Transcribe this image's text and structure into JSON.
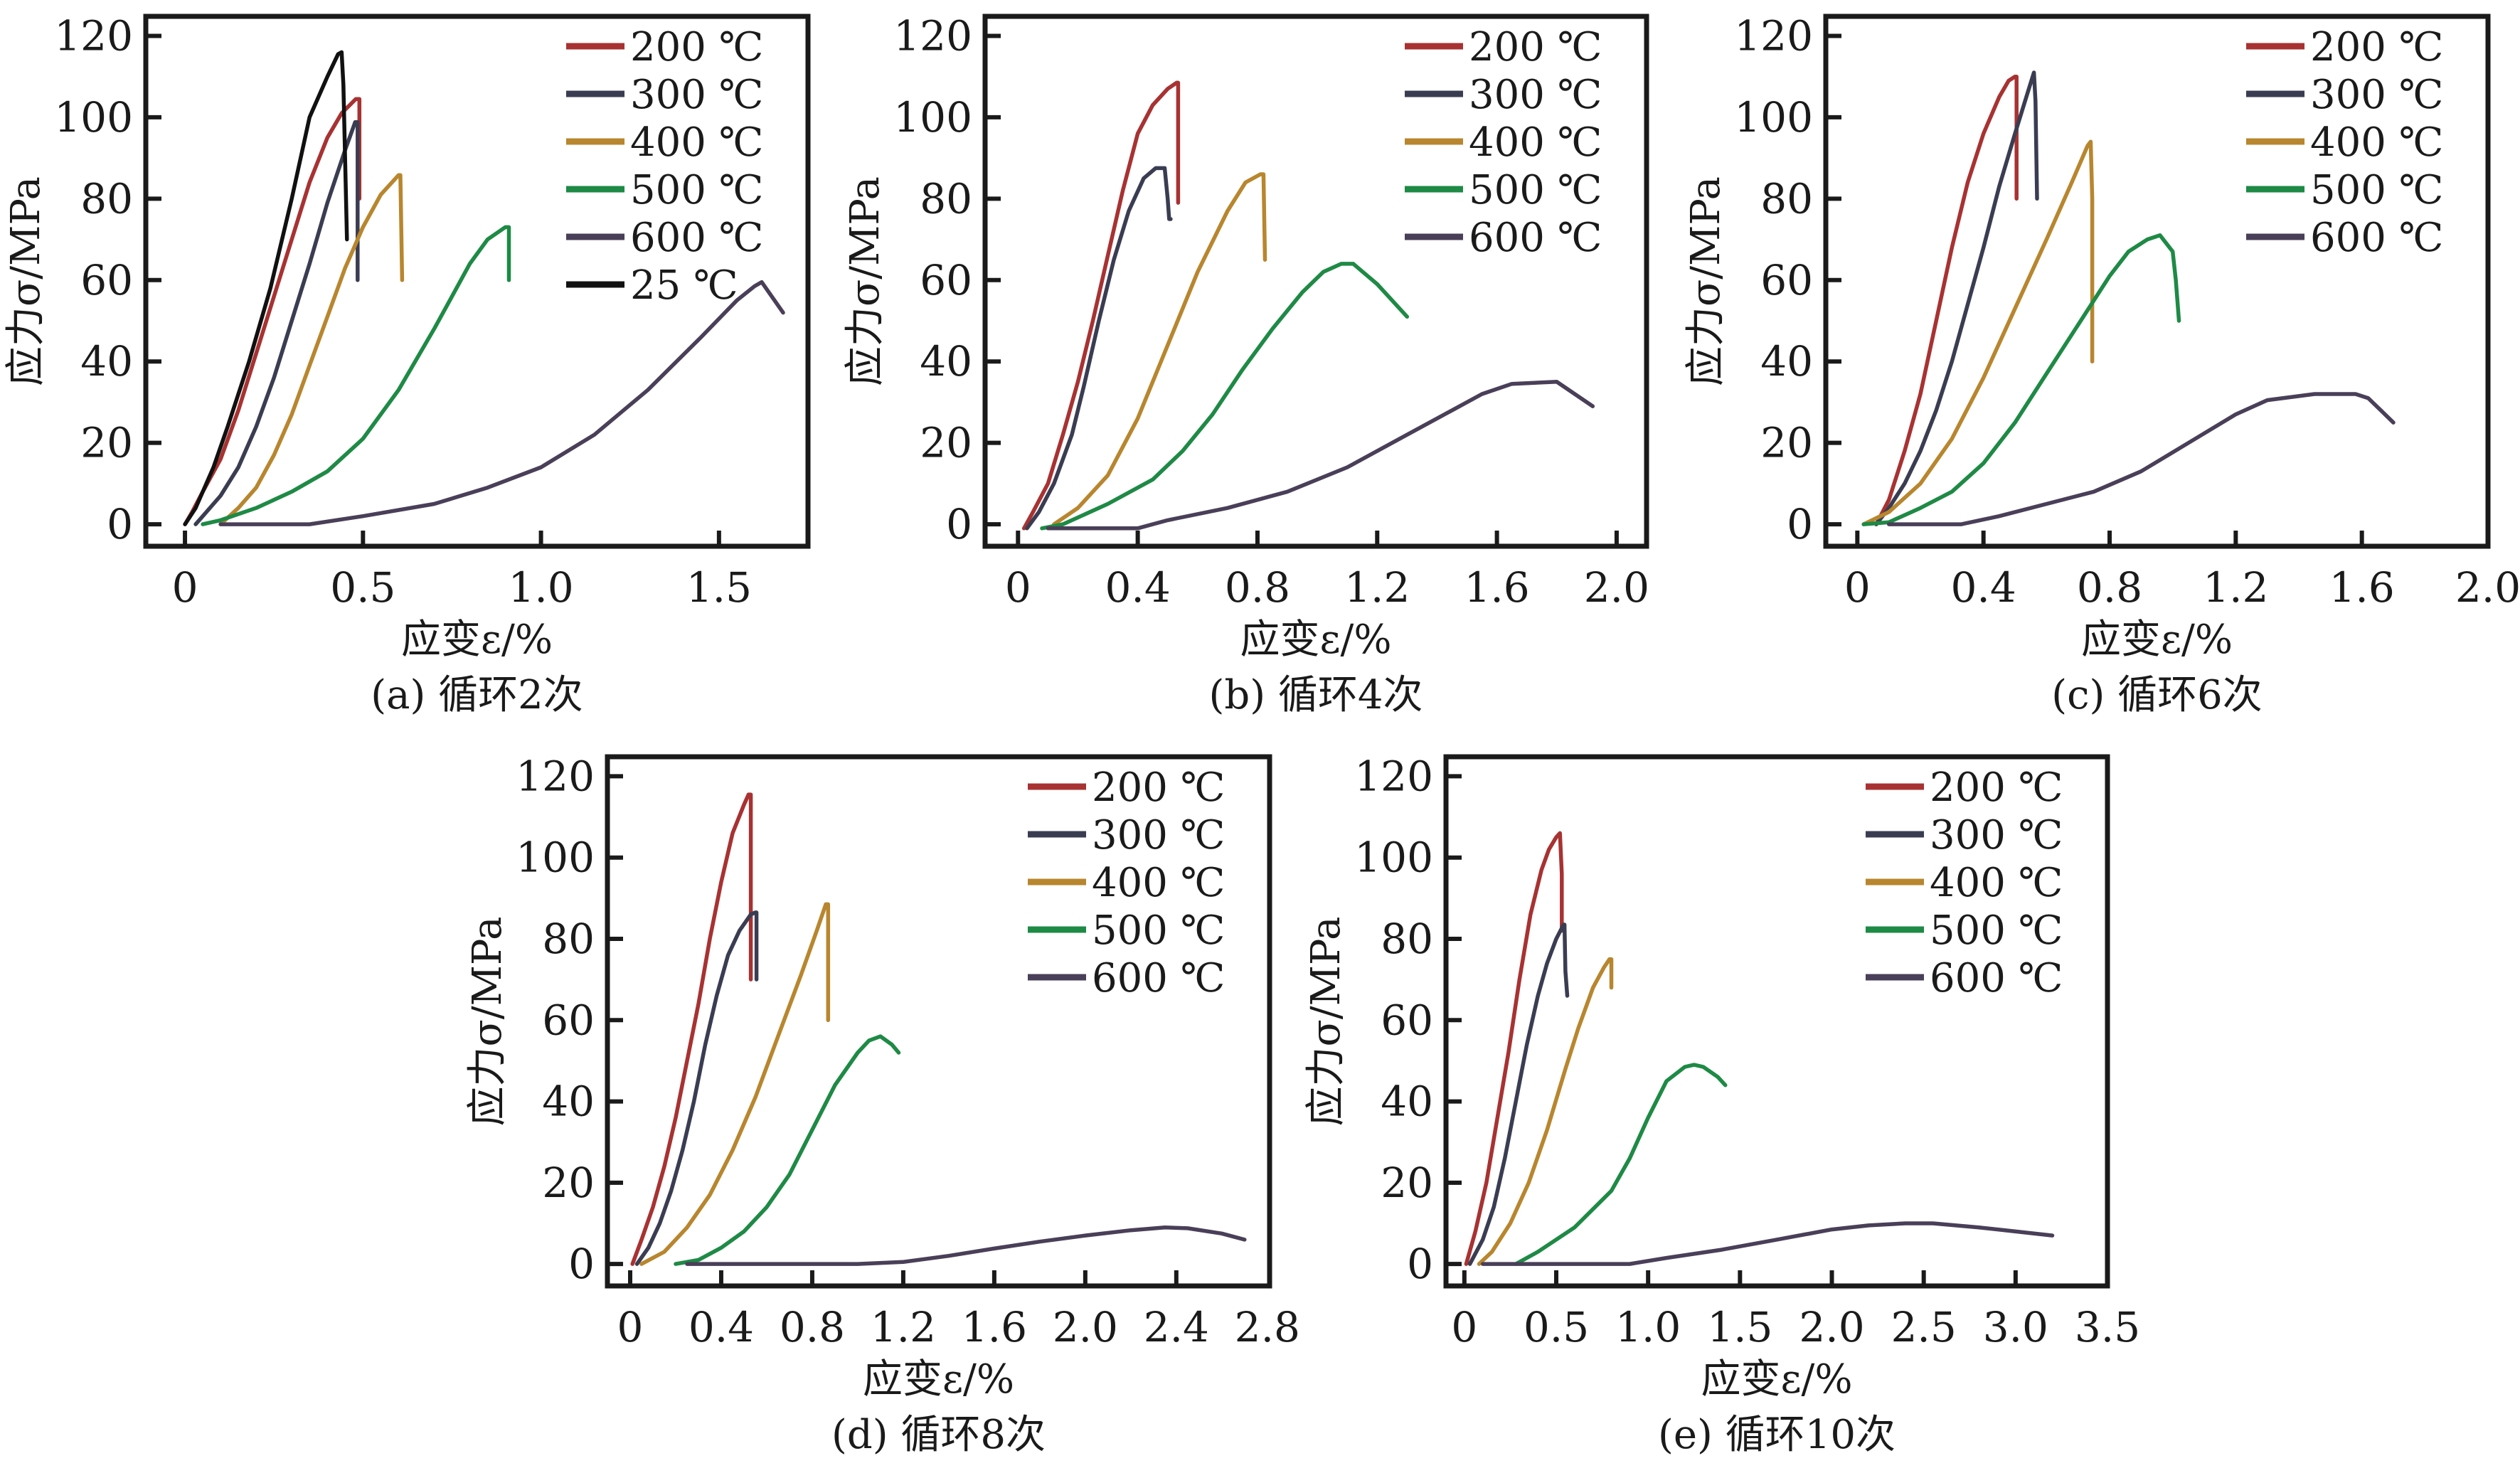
{
  "figure": {
    "series_colors": {
      "200 ℃": "#a83232",
      "300 ℃": "#3a3d52",
      "400 ℃": "#b8862e",
      "500 ℃": "#1e8a45",
      "600 ℃": "#4a3f58",
      "25 ℃": "#111111"
    }
  },
  "chart_data": [
    {
      "type": "line",
      "caption": "(a) 循环2次",
      "xlabel": "应变ε/%",
      "ylabel": "应力σ/MPa",
      "xlim": [
        -0.11,
        1.75
      ],
      "ylim": [
        -5.4,
        124.8
      ],
      "xticks": [
        0,
        0.5,
        1.0,
        1.5
      ],
      "xtick_labels": [
        "0",
        "0.5",
        "1.0",
        "1.5"
      ],
      "yticks": [
        0,
        20,
        40,
        60,
        80,
        100,
        120
      ],
      "ytick_labels": [
        "0",
        "20",
        "40",
        "60",
        "80",
        "100",
        "120"
      ],
      "legend": [
        "200 ℃",
        "300 ℃",
        "400 ℃",
        "500 ℃",
        "600 ℃",
        "25 ℃"
      ],
      "legend_position": "top-right",
      "grid": false,
      "series": [
        {
          "name": "200 ℃",
          "x": [
            0.0,
            0.02,
            0.05,
            0.1,
            0.15,
            0.2,
            0.25,
            0.3,
            0.35,
            0.4,
            0.44,
            0.48,
            0.49,
            0.49
          ],
          "y": [
            0,
            3,
            8,
            16,
            28,
            42,
            56,
            70,
            84,
            95,
            101,
            104.5,
            104.5,
            80
          ]
        },
        {
          "name": "300 ℃",
          "x": [
            0.03,
            0.05,
            0.1,
            0.15,
            0.2,
            0.25,
            0.3,
            0.35,
            0.4,
            0.45,
            0.478,
            0.485,
            0.485
          ],
          "y": [
            0,
            2,
            7,
            14,
            24,
            36,
            50,
            64,
            79,
            92,
            98.8,
            98.8,
            60
          ]
        },
        {
          "name": "400 ℃",
          "x": [
            0.1,
            0.15,
            0.2,
            0.25,
            0.3,
            0.35,
            0.4,
            0.45,
            0.5,
            0.55,
            0.6,
            0.605,
            0.61
          ],
          "y": [
            0,
            4,
            9,
            17,
            27,
            39,
            51,
            63,
            73,
            81,
            85.8,
            85.8,
            60
          ]
        },
        {
          "name": "500 ℃",
          "x": [
            0.05,
            0.1,
            0.2,
            0.3,
            0.4,
            0.5,
            0.6,
            0.7,
            0.75,
            0.8,
            0.85,
            0.9,
            0.91,
            0.91
          ],
          "y": [
            0,
            1,
            4,
            8,
            13,
            21,
            33,
            48,
            56,
            64,
            70,
            73,
            73,
            60
          ]
        },
        {
          "name": "600 ℃",
          "x": [
            0.1,
            0.35,
            0.5,
            0.7,
            0.85,
            1.0,
            1.15,
            1.3,
            1.45,
            1.55,
            1.6,
            1.62,
            1.68
          ],
          "y": [
            0,
            0,
            2,
            5,
            9,
            14,
            22,
            33,
            46,
            55,
            58.5,
            59.5,
            52
          ]
        },
        {
          "name": "25 ℃",
          "x": [
            0.0,
            0.03,
            0.08,
            0.12,
            0.18,
            0.24,
            0.3,
            0.35,
            0.4,
            0.43,
            0.44,
            0.445,
            0.455
          ],
          "y": [
            0,
            4,
            14,
            24,
            40,
            58,
            80,
            100,
            110,
            115.5,
            116,
            108,
            70
          ]
        }
      ]
    },
    {
      "type": "line",
      "caption": "(b) 循环4次",
      "xlabel": "应变ε/%",
      "ylabel": "应力σ/MPa",
      "xlim": [
        -0.11,
        2.1
      ],
      "ylim": [
        -5.4,
        124.8
      ],
      "xticks": [
        0,
        0.4,
        0.8,
        1.2,
        1.6,
        2.0
      ],
      "xtick_labels": [
        "0",
        "0.4",
        "0.8",
        "1.2",
        "1.6",
        "2.0"
      ],
      "yticks": [
        0,
        20,
        40,
        60,
        80,
        100,
        120
      ],
      "ytick_labels": [
        "0",
        "20",
        "40",
        "60",
        "80",
        "100",
        "120"
      ],
      "legend": [
        "200 ℃",
        "300 ℃",
        "400 ℃",
        "500 ℃",
        "600 ℃"
      ],
      "legend_position": "top-right",
      "grid": false,
      "series": [
        {
          "name": "200 ℃",
          "x": [
            0.02,
            0.05,
            0.1,
            0.15,
            0.2,
            0.25,
            0.3,
            0.35,
            0.4,
            0.45,
            0.5,
            0.53,
            0.535,
            0.535
          ],
          "y": [
            -1,
            3,
            10,
            22,
            35,
            50,
            66,
            82,
            96,
            103,
            107,
            108.5,
            108.5,
            79
          ]
        },
        {
          "name": "300 ℃",
          "x": [
            0.03,
            0.07,
            0.12,
            0.18,
            0.22,
            0.27,
            0.32,
            0.37,
            0.42,
            0.46,
            0.49,
            0.5,
            0.505,
            0.51
          ],
          "y": [
            -1,
            3,
            10,
            22,
            34,
            50,
            65,
            77,
            85,
            87.5,
            87.5,
            80,
            75,
            75
          ]
        },
        {
          "name": "400 ℃",
          "x": [
            0.12,
            0.2,
            0.3,
            0.4,
            0.5,
            0.6,
            0.7,
            0.76,
            0.81,
            0.82,
            0.825
          ],
          "y": [
            0,
            4,
            12,
            26,
            44,
            62,
            77,
            84,
            86,
            86,
            65
          ]
        },
        {
          "name": "500 ℃",
          "x": [
            0.08,
            0.15,
            0.3,
            0.45,
            0.55,
            0.65,
            0.75,
            0.85,
            0.95,
            1.02,
            1.08,
            1.12,
            1.2,
            1.3
          ],
          "y": [
            -1,
            0,
            5,
            11,
            18,
            27,
            38,
            48,
            57,
            62,
            64,
            64,
            59,
            51
          ]
        },
        {
          "name": "600 ℃",
          "x": [
            0.1,
            0.4,
            0.5,
            0.7,
            0.9,
            1.1,
            1.3,
            1.45,
            1.55,
            1.65,
            1.8,
            1.92
          ],
          "y": [
            -1,
            -1,
            1,
            4,
            8,
            14,
            22,
            28,
            32,
            34.5,
            35,
            29
          ]
        }
      ]
    },
    {
      "type": "line",
      "caption": "(c) 循环6次",
      "xlabel": "应变ε/%",
      "ylabel": "应力σ/MPa",
      "xlim": [
        -0.1,
        2.0
      ],
      "ylim": [
        -5.4,
        124.8
      ],
      "xticks": [
        0,
        0.4,
        0.8,
        1.2,
        1.6,
        2.0
      ],
      "xtick_labels": [
        "0",
        "0.4",
        "0.8",
        "1.2",
        "1.6",
        "2.0"
      ],
      "yticks": [
        0,
        20,
        40,
        60,
        80,
        100,
        120
      ],
      "ytick_labels": [
        "0",
        "20",
        "40",
        "60",
        "80",
        "100",
        "120"
      ],
      "legend": [
        "200 ℃",
        "300 ℃",
        "400 ℃",
        "500 ℃",
        "600 ℃"
      ],
      "legend_position": "top-right",
      "grid": false,
      "series": [
        {
          "name": "200 ℃",
          "x": [
            0.06,
            0.1,
            0.15,
            0.2,
            0.25,
            0.3,
            0.35,
            0.4,
            0.45,
            0.48,
            0.5,
            0.505,
            0.505
          ],
          "y": [
            0,
            6,
            18,
            32,
            50,
            68,
            84,
            96,
            105,
            109,
            110,
            110,
            80
          ]
        },
        {
          "name": "300 ℃",
          "x": [
            0.06,
            0.1,
            0.15,
            0.2,
            0.25,
            0.3,
            0.35,
            0.4,
            0.45,
            0.5,
            0.54,
            0.56,
            0.565,
            0.57
          ],
          "y": [
            0,
            4,
            10,
            18,
            28,
            40,
            54,
            68,
            83,
            96,
            106,
            111,
            104,
            80
          ]
        },
        {
          "name": "400 ℃",
          "x": [
            0.02,
            0.1,
            0.2,
            0.3,
            0.4,
            0.5,
            0.6,
            0.68,
            0.73,
            0.74,
            0.745,
            0.745
          ],
          "y": [
            0,
            3,
            10,
            21,
            36,
            53,
            70,
            84,
            93,
            94,
            80,
            40
          ]
        },
        {
          "name": "500 ℃",
          "x": [
            0.02,
            0.1,
            0.2,
            0.3,
            0.4,
            0.5,
            0.6,
            0.7,
            0.8,
            0.86,
            0.92,
            0.96,
            1.0,
            1.01,
            1.02
          ],
          "y": [
            0,
            0.5,
            4,
            8,
            15,
            25,
            37,
            49,
            61,
            67,
            70,
            71,
            67,
            60,
            50
          ]
        },
        {
          "name": "600 ℃",
          "x": [
            0.1,
            0.33,
            0.45,
            0.6,
            0.75,
            0.9,
            1.05,
            1.2,
            1.3,
            1.45,
            1.58,
            1.62,
            1.66,
            1.7
          ],
          "y": [
            0,
            0,
            2,
            5,
            8,
            13,
            20,
            27,
            30.5,
            32,
            32,
            31,
            28,
            25
          ]
        }
      ]
    },
    {
      "type": "line",
      "caption": "(d) 循环8次",
      "xlabel": "应变ε/%",
      "ylabel": "应力σ/MPa",
      "xlim": [
        -0.1,
        2.81
      ],
      "ylim": [
        -5.4,
        124.8
      ],
      "xticks": [
        0,
        0.4,
        0.8,
        1.2,
        1.6,
        2.0,
        2.4,
        2.8
      ],
      "xtick_labels": [
        "0",
        "0.4",
        "0.8",
        "1.2",
        "1.6",
        "2.0",
        "2.4",
        "2.8"
      ],
      "yticks": [
        0,
        20,
        40,
        60,
        80,
        100,
        120
      ],
      "ytick_labels": [
        "0",
        "20",
        "40",
        "60",
        "80",
        "100",
        "120"
      ],
      "legend": [
        "200 ℃",
        "300 ℃",
        "400 ℃",
        "500 ℃",
        "600 ℃"
      ],
      "legend_position": "top-right",
      "grid": false,
      "series": [
        {
          "name": "200 ℃",
          "x": [
            0.01,
            0.05,
            0.1,
            0.15,
            0.2,
            0.25,
            0.3,
            0.35,
            0.4,
            0.45,
            0.5,
            0.52,
            0.53,
            0.53
          ],
          "y": [
            0,
            6,
            14,
            24,
            36,
            50,
            64,
            80,
            94,
            106,
            113,
            115.5,
            115.5,
            70
          ]
        },
        {
          "name": "300 ℃",
          "x": [
            0.03,
            0.08,
            0.13,
            0.18,
            0.23,
            0.28,
            0.33,
            0.38,
            0.43,
            0.48,
            0.53,
            0.55,
            0.555,
            0.555
          ],
          "y": [
            0,
            4,
            10,
            18,
            28,
            40,
            54,
            66,
            76,
            82,
            86,
            86.5,
            86.5,
            70
          ]
        },
        {
          "name": "400 ℃",
          "x": [
            0.05,
            0.15,
            0.25,
            0.35,
            0.45,
            0.55,
            0.65,
            0.75,
            0.82,
            0.86,
            0.87,
            0.87
          ],
          "y": [
            0,
            3,
            9,
            17,
            28,
            41,
            56,
            71,
            82,
            88.5,
            88.5,
            60
          ]
        },
        {
          "name": "500 ℃",
          "x": [
            0.2,
            0.3,
            0.4,
            0.5,
            0.6,
            0.7,
            0.8,
            0.9,
            1.0,
            1.05,
            1.1,
            1.15,
            1.18
          ],
          "y": [
            0,
            1,
            4,
            8,
            14,
            22,
            33,
            44,
            52,
            55,
            56,
            54,
            52
          ]
        },
        {
          "name": "600 ℃",
          "x": [
            0.25,
            0.6,
            1.0,
            1.2,
            1.4,
            1.6,
            1.8,
            2.0,
            2.2,
            2.35,
            2.45,
            2.6,
            2.7
          ],
          "y": [
            0,
            0,
            0,
            0.5,
            2,
            3.8,
            5.5,
            7,
            8.3,
            9,
            8.8,
            7.5,
            6
          ]
        }
      ]
    },
    {
      "type": "line",
      "caption": "(e) 循环10次",
      "xlabel": "应变ε/%",
      "ylabel": "应力σ/MPa",
      "xlim": [
        -0.1,
        3.5
      ],
      "ylim": [
        -5.4,
        124.8
      ],
      "xticks": [
        0,
        0.5,
        1.0,
        1.5,
        2.0,
        2.5,
        3.0,
        3.5
      ],
      "xtick_labels": [
        "0",
        "0.5",
        "1.0",
        "1.5",
        "2.0",
        "2.5",
        "3.0",
        "3.5"
      ],
      "yticks": [
        0,
        20,
        40,
        60,
        80,
        100,
        120
      ],
      "ytick_labels": [
        "0",
        "20",
        "40",
        "60",
        "80",
        "100",
        "120"
      ],
      "legend": [
        "200 ℃",
        "300 ℃",
        "400 ℃",
        "500 ℃",
        "600 ℃"
      ],
      "legend_position": "top-right",
      "grid": false,
      "series": [
        {
          "name": "200 ℃",
          "x": [
            0.01,
            0.06,
            0.12,
            0.18,
            0.24,
            0.3,
            0.36,
            0.42,
            0.46,
            0.5,
            0.52,
            0.53,
            0.53
          ],
          "y": [
            0,
            8,
            20,
            36,
            52,
            70,
            86,
            97,
            102,
            105,
            106,
            96,
            82
          ]
        },
        {
          "name": "300 ℃",
          "x": [
            0.03,
            0.1,
            0.16,
            0.22,
            0.28,
            0.34,
            0.4,
            0.45,
            0.5,
            0.54,
            0.545,
            0.55,
            0.56
          ],
          "y": [
            0,
            6,
            14,
            26,
            40,
            54,
            66,
            74,
            80,
            83.5,
            83.5,
            72,
            66
          ]
        },
        {
          "name": "400 ℃",
          "x": [
            0.08,
            0.15,
            0.25,
            0.35,
            0.45,
            0.55,
            0.62,
            0.7,
            0.76,
            0.79,
            0.8,
            0.8
          ],
          "y": [
            0,
            3,
            10,
            20,
            33,
            48,
            58,
            68,
            73,
            75,
            75,
            68
          ]
        },
        {
          "name": "500 ℃",
          "x": [
            0.28,
            0.4,
            0.6,
            0.8,
            0.9,
            1.0,
            1.1,
            1.2,
            1.25,
            1.3,
            1.38,
            1.42
          ],
          "y": [
            0,
            3,
            9,
            18,
            26,
            36,
            45,
            48.5,
            49,
            48.5,
            46,
            44
          ]
        },
        {
          "name": "600 ℃",
          "x": [
            0.1,
            0.5,
            0.9,
            1.1,
            1.4,
            1.7,
            2.0,
            2.2,
            2.4,
            2.55,
            2.8,
            3.0,
            3.2
          ],
          "y": [
            0,
            0,
            0,
            1.5,
            3.5,
            6,
            8.5,
            9.5,
            10,
            10,
            9,
            8,
            7
          ]
        }
      ]
    }
  ]
}
